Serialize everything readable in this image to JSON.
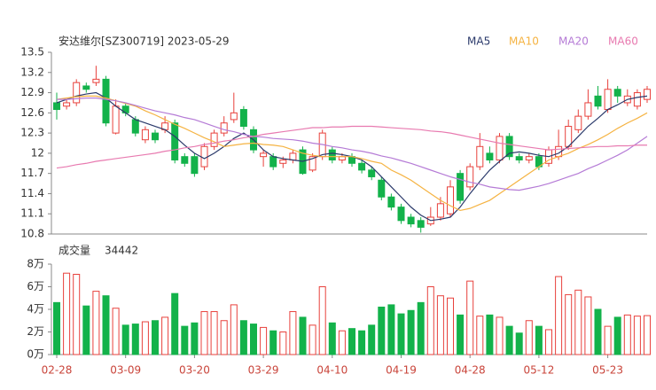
{
  "chart_data": [
    {
      "type": "candlestick",
      "title": "安达维尔[SZ300719] 2023-05-29",
      "up_color": "#e8413c",
      "down_color": "#13b24a",
      "open": [
        12.75,
        12.7,
        12.75,
        13.0,
        13.05,
        13.1,
        12.3,
        12.7,
        12.5,
        12.2,
        12.3,
        12.35,
        12.45,
        11.95,
        11.95,
        11.8,
        12.1,
        12.3,
        12.5,
        12.65,
        12.35,
        11.95,
        11.95,
        11.85,
        11.9,
        12.05,
        11.75,
        11.95,
        12.05,
        11.9,
        11.95,
        11.85,
        11.75,
        11.6,
        11.35,
        11.2,
        11.05,
        11.0,
        10.95,
        11.05,
        11.1,
        11.7,
        11.5,
        11.8,
        12.0,
        11.9,
        12.25,
        11.95,
        11.9,
        11.95,
        11.85,
        11.95,
        12.1,
        12.35,
        12.55,
        12.85,
        12.65,
        12.95,
        12.75,
        12.7,
        12.8
      ],
      "high": [
        12.9,
        12.8,
        13.1,
        13.05,
        13.3,
        13.15,
        12.8,
        12.75,
        12.55,
        12.4,
        12.35,
        12.55,
        12.5,
        12.0,
        12.0,
        12.15,
        12.35,
        12.55,
        12.9,
        12.7,
        12.4,
        12.05,
        12.0,
        11.95,
        12.05,
        12.1,
        12.0,
        12.35,
        12.1,
        12.0,
        12.0,
        11.9,
        11.8,
        11.65,
        11.4,
        11.25,
        11.1,
        11.05,
        11.2,
        11.35,
        11.6,
        11.75,
        11.85,
        12.3,
        12.1,
        12.3,
        12.3,
        12.0,
        12.0,
        12.0,
        12.1,
        12.35,
        12.5,
        12.65,
        12.95,
        13.0,
        13.1,
        13.0,
        12.95,
        12.95,
        13.0
      ],
      "low": [
        12.5,
        12.65,
        12.7,
        12.9,
        13.0,
        12.4,
        12.28,
        12.55,
        12.25,
        12.15,
        12.15,
        12.3,
        11.85,
        11.8,
        11.65,
        11.75,
        12.05,
        12.25,
        12.45,
        12.35,
        12.0,
        11.8,
        11.75,
        11.78,
        11.85,
        11.68,
        11.72,
        11.9,
        11.85,
        11.85,
        11.8,
        11.7,
        11.6,
        11.3,
        11.15,
        10.95,
        10.9,
        10.82,
        10.92,
        11.0,
        11.05,
        11.25,
        11.45,
        11.75,
        11.85,
        11.85,
        11.9,
        11.85,
        11.85,
        11.75,
        11.8,
        11.9,
        12.05,
        12.3,
        12.5,
        12.65,
        12.6,
        12.75,
        12.7,
        12.65,
        12.75
      ],
      "close": [
        12.65,
        12.75,
        13.05,
        12.95,
        13.1,
        12.45,
        12.7,
        12.6,
        12.3,
        12.35,
        12.2,
        12.45,
        11.9,
        11.85,
        11.7,
        12.1,
        12.3,
        12.45,
        12.6,
        12.4,
        12.05,
        12.0,
        11.8,
        11.9,
        12.0,
        11.7,
        11.95,
        12.3,
        11.9,
        11.95,
        11.85,
        11.75,
        11.65,
        11.35,
        11.2,
        11.0,
        10.95,
        10.9,
        11.05,
        11.25,
        11.5,
        11.3,
        11.8,
        12.1,
        11.9,
        12.25,
        11.95,
        11.9,
        11.95,
        11.8,
        12.05,
        12.1,
        12.4,
        12.55,
        12.75,
        12.7,
        12.95,
        12.85,
        12.85,
        12.9,
        12.95
      ],
      "series": [
        {
          "name": "MA5",
          "color": "#2b3a6b",
          "values": [
            12.75,
            12.8,
            12.85,
            12.88,
            12.9,
            12.82,
            12.7,
            12.6,
            12.5,
            12.45,
            12.4,
            12.35,
            12.25,
            12.12,
            12.0,
            11.92,
            12.0,
            12.1,
            12.22,
            12.3,
            12.2,
            12.05,
            11.95,
            11.92,
            11.9,
            11.88,
            11.92,
            11.98,
            12.0,
            11.98,
            11.95,
            11.9,
            11.8,
            11.65,
            11.5,
            11.35,
            11.2,
            11.08,
            11.0,
            11.02,
            11.05,
            11.2,
            11.4,
            11.58,
            11.75,
            11.88,
            12.0,
            12.02,
            12.0,
            11.97,
            11.95,
            12.0,
            12.1,
            12.25,
            12.4,
            12.52,
            12.65,
            12.72,
            12.8,
            12.83,
            12.85
          ]
        },
        {
          "name": "MA10",
          "color": "#f5b342",
          "values": [
            12.8,
            12.82,
            12.84,
            12.85,
            12.85,
            12.82,
            12.78,
            12.74,
            12.7,
            12.63,
            12.57,
            12.5,
            12.43,
            12.37,
            12.3,
            12.23,
            12.17,
            12.1,
            12.12,
            12.14,
            12.15,
            12.13,
            12.12,
            12.1,
            12.05,
            12.0,
            11.97,
            11.95,
            11.95,
            11.95,
            11.95,
            11.92,
            11.88,
            11.85,
            11.75,
            11.68,
            11.6,
            11.5,
            11.4,
            11.3,
            11.22,
            11.15,
            11.18,
            11.24,
            11.3,
            11.4,
            11.5,
            11.6,
            11.7,
            11.8,
            11.9,
            11.95,
            12.0,
            12.07,
            12.13,
            12.2,
            12.28,
            12.37,
            12.45,
            12.52,
            12.6
          ]
        },
        {
          "name": "MA20",
          "color": "#b57bd6",
          "values": [
            12.8,
            12.8,
            12.81,
            12.82,
            12.82,
            12.8,
            12.78,
            12.75,
            12.71,
            12.67,
            12.63,
            12.6,
            12.57,
            12.53,
            12.5,
            12.45,
            12.4,
            12.35,
            12.32,
            12.28,
            12.25,
            12.24,
            12.22,
            12.21,
            12.2,
            12.18,
            12.15,
            12.13,
            12.1,
            12.08,
            12.05,
            12.03,
            12.0,
            11.96,
            11.93,
            11.89,
            11.85,
            11.8,
            11.75,
            11.7,
            11.65,
            11.61,
            11.57,
            11.54,
            11.5,
            11.48,
            11.46,
            11.45,
            11.48,
            11.51,
            11.55,
            11.6,
            11.65,
            11.7,
            11.77,
            11.83,
            11.9,
            11.97,
            12.05,
            12.15,
            12.25
          ]
        },
        {
          "name": "MA60",
          "color": "#e87ab0",
          "values": [
            11.78,
            11.8,
            11.83,
            11.85,
            11.88,
            11.9,
            11.92,
            11.94,
            11.96,
            11.98,
            12.0,
            12.03,
            12.05,
            12.08,
            12.1,
            12.13,
            12.15,
            12.18,
            12.2,
            12.23,
            12.25,
            12.28,
            12.3,
            12.32,
            12.34,
            12.36,
            12.38,
            12.38,
            12.39,
            12.39,
            12.4,
            12.4,
            12.4,
            12.39,
            12.38,
            12.37,
            12.36,
            12.35,
            12.33,
            12.32,
            12.3,
            12.27,
            12.24,
            12.21,
            12.18,
            12.15,
            12.13,
            12.11,
            12.09,
            12.07,
            12.05,
            12.06,
            12.07,
            12.08,
            12.09,
            12.1,
            12.1,
            12.11,
            12.11,
            12.12,
            12.12
          ]
        }
      ],
      "ylim": [
        10.8,
        13.5
      ],
      "yticks": [
        13.5,
        13.2,
        12.9,
        12.6,
        12.3,
        12,
        11.7,
        11.4,
        11.1,
        10.8
      ],
      "grid": false
    },
    {
      "type": "bar",
      "title": "成交量",
      "categories": [
        "02-28",
        null,
        null,
        null,
        null,
        null,
        null,
        "03-09",
        null,
        null,
        null,
        null,
        null,
        null,
        "03-20",
        null,
        null,
        null,
        null,
        null,
        null,
        "03-29",
        null,
        null,
        null,
        null,
        null,
        null,
        "04-10",
        null,
        null,
        null,
        null,
        null,
        null,
        "04-19",
        null,
        null,
        null,
        null,
        null,
        null,
        "04-28",
        null,
        null,
        null,
        null,
        null,
        null,
        "05-12",
        null,
        null,
        null,
        null,
        null,
        null,
        "05-23",
        null,
        null,
        null,
        null
      ],
      "values": [
        46000,
        72000,
        71000,
        43000,
        56000,
        52000,
        41000,
        26000,
        27000,
        29000,
        30000,
        33000,
        54000,
        25000,
        28000,
        38000,
        38000,
        30000,
        44000,
        30000,
        27000,
        24000,
        21000,
        20000,
        38000,
        33000,
        26000,
        60000,
        28000,
        21000,
        23000,
        21000,
        26000,
        42000,
        44000,
        36000,
        39000,
        46000,
        60000,
        52000,
        50000,
        35000,
        65000,
        34000,
        35000,
        33000,
        25000,
        19000,
        30000,
        25000,
        22000,
        69000,
        53000,
        57000,
        51000,
        40000,
        25000,
        33000,
        35000,
        34000,
        34442
      ],
      "ylim": [
        0,
        80000
      ],
      "yticks": [
        {
          "value": 80000,
          "label": "8万"
        },
        {
          "value": 60000,
          "label": "6万"
        },
        {
          "value": 40000,
          "label": "4万"
        },
        {
          "value": 20000,
          "label": "2万"
        },
        {
          "value": 0,
          "label": "0万"
        }
      ]
    }
  ]
}
